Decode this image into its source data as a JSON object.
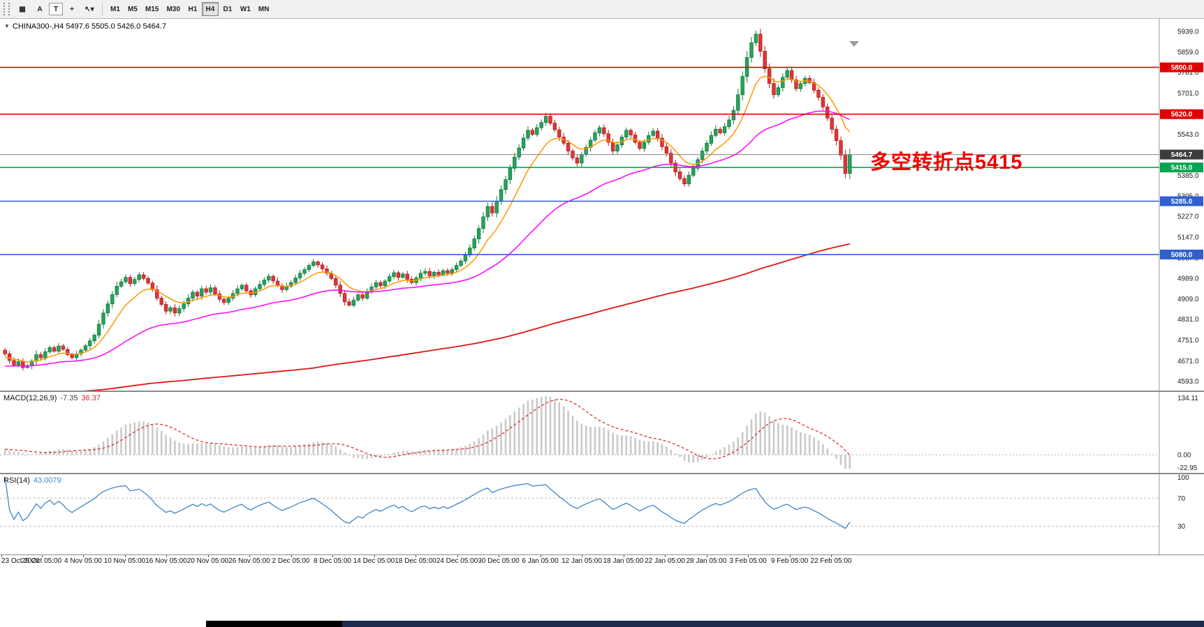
{
  "toolbar": {
    "tools": [
      {
        "name": "charts-grid",
        "glyph": "▦"
      },
      {
        "name": "font-tool",
        "glyph": "A"
      },
      {
        "name": "text-tool",
        "glyph": "T"
      },
      {
        "name": "crosshair-tool",
        "glyph": "+"
      },
      {
        "name": "cursor-tool",
        "glyph": "↖▾"
      }
    ],
    "timeframes": [
      "M1",
      "M5",
      "M15",
      "M30",
      "H1",
      "H4",
      "D1",
      "W1",
      "MN"
    ],
    "active_timeframe": "H4"
  },
  "chart": {
    "collapse_arrow": "▼",
    "title": "CHINA300-,H4 5497.6 5505.0 5426.0 5464.7",
    "symbol": "CHINA300-",
    "timeframe": "H4",
    "annotation": "多空转折点5415",
    "current_price": 5464.7,
    "current_price_label": "5464.7",
    "axis_ticks": [
      "5939.0",
      "5859.0",
      "5781.0",
      "5701.0",
      "5621.0",
      "5543.0",
      "5463.0",
      "5385.0",
      "5305.0",
      "5227.0",
      "5147.0",
      "5067.0",
      "4989.0",
      "4909.0",
      "4831.0",
      "4751.0",
      "4671.0",
      "4593.0"
    ],
    "levels": [
      {
        "label": "5800.0",
        "price": 5800.0,
        "color": "#e00000"
      },
      {
        "label": "5620.0",
        "price": 5620.0,
        "color": "#e00000"
      },
      {
        "label": "5415.0",
        "price": 5415.0,
        "color": "#00a651"
      },
      {
        "label": "5285.0",
        "price": 5285.0,
        "color": "#2f5fd0"
      },
      {
        "label": "5080.0",
        "price": 5080.0,
        "color": "#2f5fd0"
      }
    ]
  },
  "chart_data": {
    "type": "candlestick",
    "symbol": "CHINA300-",
    "timeframe": "H4",
    "price_min": 4570,
    "price_max": 5960,
    "open_first": 4712,
    "closes": [
      4698,
      4672,
      4655,
      4668,
      4645,
      4652,
      4670,
      4695,
      4682,
      4706,
      4722,
      4708,
      4728,
      4715,
      4695,
      4683,
      4698,
      4712,
      4729,
      4748,
      4770,
      4812,
      4855,
      4890,
      4926,
      4958,
      4975,
      4992,
      4968,
      4984,
      5002,
      4988,
      4970,
      4945,
      4912,
      4888,
      4862,
      4875,
      4855,
      4872,
      4890,
      4912,
      4935,
      4920,
      4948,
      4935,
      4952,
      4928,
      4908,
      4895,
      4912,
      4930,
      4948,
      4962,
      4940,
      4925,
      4948,
      4965,
      4982,
      4996,
      4978,
      4960,
      4945,
      4958,
      4972,
      4990,
      5008,
      5022,
      5038,
      5052,
      5040,
      5025,
      5008,
      4988,
      4962,
      4930,
      4898,
      4885,
      4905,
      4925,
      4912,
      4938,
      4955,
      4972,
      4960,
      4978,
      4995,
      5010,
      4992,
      5005,
      4985,
      4972,
      4990,
      5008,
      5015,
      4998,
      5012,
      5002,
      5018,
      5008,
      5022,
      5038,
      5055,
      5078,
      5105,
      5140,
      5180,
      5225,
      5265,
      5240,
      5285,
      5330,
      5368,
      5412,
      5455,
      5490,
      5528,
      5558,
      5542,
      5568,
      5588,
      5612,
      5585,
      5560,
      5532,
      5508,
      5478,
      5452,
      5432,
      5465,
      5492,
      5520,
      5548,
      5568,
      5545,
      5512,
      5478,
      5502,
      5532,
      5558,
      5540,
      5512,
      5488,
      5512,
      5538,
      5555,
      5528,
      5495,
      5470,
      5432,
      5398,
      5372,
      5352,
      5385,
      5412,
      5445,
      5478,
      5508,
      5538,
      5562,
      5548,
      5572,
      5598,
      5635,
      5695,
      5765,
      5838,
      5895,
      5928,
      5862,
      5795,
      5738,
      5695,
      5722,
      5762,
      5788,
      5752,
      5718,
      5738,
      5758,
      5742,
      5712,
      5685,
      5648,
      5605,
      5562,
      5518,
      5462,
      5392,
      5464.7
    ],
    "ma": [
      {
        "period": 10,
        "color": "#ff9800"
      },
      {
        "period": 45,
        "color": "#ff00ff"
      },
      {
        "period": 220,
        "color": "#e11414"
      }
    ]
  },
  "macd": {
    "label": "MACD(12,26,9)",
    "value_main": "-7.35",
    "value_signal": "36.37",
    "fast": 12,
    "slow": 26,
    "signal": 9,
    "axis": [
      "134.11",
      "0.00",
      "-22.95"
    ]
  },
  "rsi": {
    "label": "RSI(14)",
    "value": "43.0079",
    "period": 14,
    "axis": [
      "100",
      "70",
      "30"
    ],
    "levels": [
      70,
      30
    ]
  },
  "time_axis": [
    "23 Oct 2020",
    "29 Oct 05:00",
    "4 Nov 05:00",
    "10 Nov 05:00",
    "16 Nov 05:00",
    "20 Nov 05:00",
    "26 Nov 05:00",
    "2 Dec 05:00",
    "8 Dec 05:00",
    "14 Dec 05:00",
    "18 Dec 05:00",
    "24 Dec 05:00",
    "30 Dec 05:00",
    "6 Jan 05:00",
    "12 Jan 05:00",
    "18 Jan 05:00",
    "22 Jan 05:00",
    "28 Jan 05:00",
    "3 Feb 05:00",
    "9 Feb 05:00",
    "22 Feb 05:00"
  ],
  "colors": {
    "up": "#26a35c",
    "up_stroke": "#157a3f",
    "down": "#e23535",
    "down_stroke": "#b02020",
    "macd_hist": "#c9c9c9",
    "macd_signal": "#dd2222",
    "rsi_line": "#3c86c8",
    "price_line": "#808080",
    "badge_current_bg": "#3c3c3c",
    "annotation": "#f00000",
    "axis_text": "#1a1a1a"
  }
}
